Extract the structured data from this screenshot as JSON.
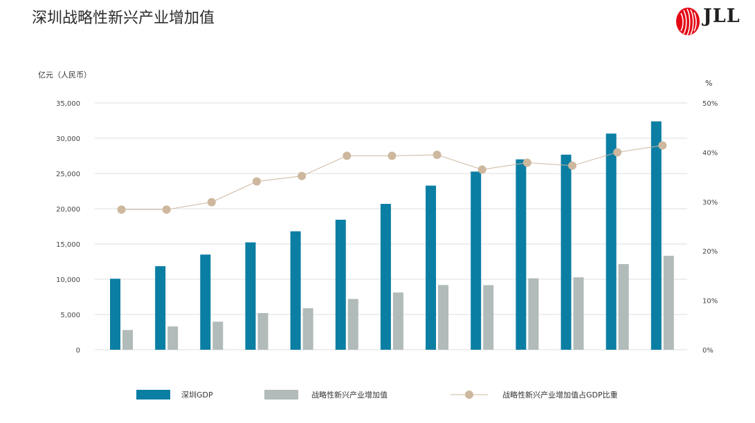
{
  "page": {
    "title": "深圳战略性新兴产业增加值"
  },
  "logo": {
    "text": "JLL"
  },
  "colors": {
    "gdp": "#0b7ea4",
    "industry": "#b1bbb9",
    "ratio": "#cdb79e",
    "grid": "#dddddd"
  },
  "chart_data": {
    "type": "bar",
    "y_left": {
      "label": "亿元（人民币）",
      "min": 0,
      "max": 35000,
      "ticks": [
        "0",
        "5,000",
        "10,000",
        "15,000",
        "20,000",
        "25,000",
        "30,000",
        "35,000"
      ]
    },
    "y_right": {
      "label": "%",
      "min": 0,
      "max": 50,
      "ticks": [
        "0%",
        "10%",
        "20%",
        "30%",
        "40%",
        "50%"
      ]
    },
    "categories": [
      "",
      "",
      "",
      "",
      "",
      "",
      "",
      "",
      "",
      "",
      "",
      "",
      ""
    ],
    "series": [
      {
        "name": "深圳GDP",
        "type": "bar",
        "axis": "left",
        "values": [
          10070,
          11850,
          13500,
          15230,
          16800,
          18440,
          20690,
          23280,
          25270,
          27000,
          27670,
          30660,
          32390
        ]
      },
      {
        "name": "战略性新兴产业增加值",
        "type": "bar",
        "axis": "left",
        "values": [
          2800,
          3300,
          3980,
          5200,
          5880,
          7200,
          8120,
          9180,
          9160,
          10130,
          10270,
          12150,
          13320
        ]
      },
      {
        "name": "战略性新兴产业增加值占GDP比重",
        "type": "line",
        "axis": "right",
        "values": [
          28.4,
          28.4,
          29.9,
          34.1,
          35.2,
          39.3,
          39.3,
          39.5,
          36.5,
          37.9,
          37.3,
          40.0,
          41.4
        ]
      }
    ],
    "grid": true,
    "legend_position": "bottom"
  }
}
